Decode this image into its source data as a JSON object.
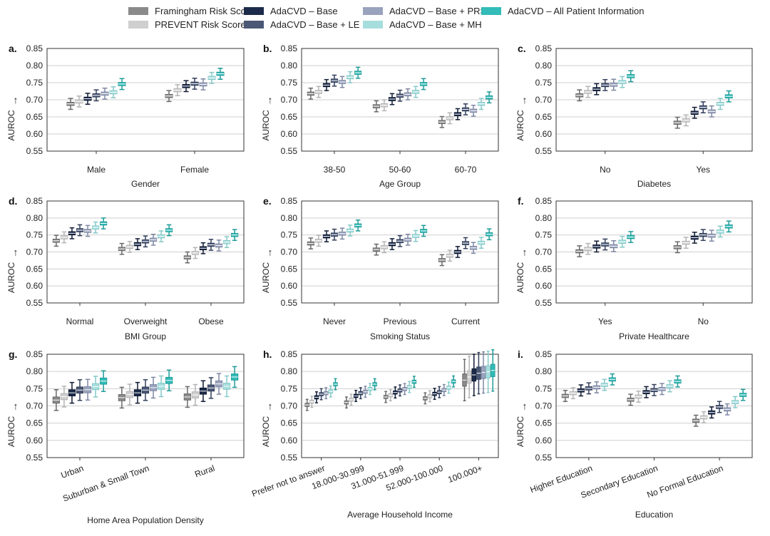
{
  "legend": {
    "items": [
      {
        "label": "Framingham Risk Score",
        "color": "#8a8a8a"
      },
      {
        "label": "PREVENT Risk Score",
        "color": "#cfcfcf"
      },
      {
        "label": "AdaCVD – Base",
        "color": "#1c2b4a"
      },
      {
        "label": "AdaCVD – Base + LE",
        "color": "#4a5775"
      },
      {
        "label": "AdaCVD – Base + PRS",
        "color": "#9aa3bd"
      },
      {
        "label": "AdaCVD – Base + MH",
        "color": "#a6dede"
      },
      {
        "label": "AdaCVD – All Patient Information",
        "color": "#33bcb8"
      }
    ]
  },
  "chart_data": [
    {
      "type": "box",
      "panel": "a.",
      "title": "Gender",
      "ylabel": "↑\nAUROC",
      "ylim": [
        0.55,
        0.85
      ],
      "yticks": [
        "0.55",
        "0.60",
        "0.65",
        "0.70",
        "0.75",
        "0.80",
        "0.85"
      ],
      "categories": [
        "Male",
        "Female"
      ],
      "xtick_rotation": 0,
      "medians": [
        [
          0.688,
          0.695,
          0.703,
          0.713,
          0.718,
          0.722,
          0.746
        ],
        [
          0.711,
          0.728,
          0.74,
          0.747,
          0.745,
          0.764,
          0.776
        ]
      ]
    },
    {
      "type": "box",
      "panel": "b.",
      "title": "Age Group",
      "ylabel": "↑\nAUROC",
      "ylim": [
        0.55,
        0.85
      ],
      "yticks": [
        "0.55",
        "0.60",
        "0.65",
        "0.70",
        "0.75",
        "0.80",
        "0.85"
      ],
      "categories": [
        "38-50",
        "50-60",
        "60-70"
      ],
      "xtick_rotation": 0,
      "medians": [
        [
          0.718,
          0.723,
          0.743,
          0.756,
          0.752,
          0.766,
          0.779
        ],
        [
          0.681,
          0.684,
          0.702,
          0.712,
          0.716,
          0.723,
          0.746
        ],
        [
          0.635,
          0.646,
          0.658,
          0.672,
          0.668,
          0.688,
          0.707
        ]
      ]
    },
    {
      "type": "box",
      "panel": "c.",
      "title": "Diabetes",
      "ylabel": "↑\nAUROC",
      "ylim": [
        0.55,
        0.85
      ],
      "yticks": [
        "0.55",
        "0.60",
        "0.65",
        "0.70",
        "0.75",
        "0.80",
        "0.85"
      ],
      "categories": [
        "No",
        "Yes"
      ],
      "xtick_rotation": 0,
      "medians": [
        [
          0.713,
          0.723,
          0.731,
          0.743,
          0.744,
          0.752,
          0.769
        ],
        [
          0.633,
          0.64,
          0.662,
          0.678,
          0.666,
          0.688,
          0.71
        ]
      ]
    },
    {
      "type": "box",
      "panel": "d.",
      "title": "BMI Group",
      "ylabel": "↑\nAUROC",
      "ylim": [
        0.55,
        0.85
      ],
      "yticks": [
        "0.55",
        "0.60",
        "0.65",
        "0.70",
        "0.75",
        "0.80",
        "0.85"
      ],
      "categories": [
        "Normal",
        "Overweight",
        "Obese"
      ],
      "xtick_rotation": 0,
      "medians": [
        [
          0.733,
          0.743,
          0.755,
          0.764,
          0.762,
          0.772,
          0.784
        ],
        [
          0.709,
          0.715,
          0.723,
          0.731,
          0.736,
          0.746,
          0.764
        ],
        [
          0.684,
          0.697,
          0.711,
          0.721,
          0.719,
          0.729,
          0.75
        ]
      ]
    },
    {
      "type": "box",
      "panel": "e.",
      "title": "Smoking Status",
      "ylabel": "↑\nAUROC",
      "ylim": [
        0.55,
        0.85
      ],
      "yticks": [
        "0.55",
        "0.60",
        "0.65",
        "0.70",
        "0.75",
        "0.80",
        "0.85"
      ],
      "categories": [
        "Never",
        "Previous",
        "Current"
      ],
      "xtick_rotation": 0,
      "medians": [
        [
          0.725,
          0.733,
          0.746,
          0.751,
          0.754,
          0.763,
          0.778
        ],
        [
          0.707,
          0.714,
          0.723,
          0.732,
          0.736,
          0.747,
          0.762
        ],
        [
          0.676,
          0.689,
          0.7,
          0.726,
          0.712,
          0.727,
          0.752
        ]
      ]
    },
    {
      "type": "box",
      "panel": "f.",
      "title": "Private Healthcare",
      "ylabel": "↑\nAUROC",
      "ylim": [
        0.55,
        0.85
      ],
      "yticks": [
        "0.55",
        "0.60",
        "0.65",
        "0.70",
        "0.75",
        "0.80",
        "0.85"
      ],
      "categories": [
        "Yes",
        "No"
      ],
      "xtick_rotation": 0,
      "medians": [
        [
          0.702,
          0.709,
          0.716,
          0.722,
          0.717,
          0.73,
          0.744
        ],
        [
          0.714,
          0.727,
          0.742,
          0.75,
          0.748,
          0.76,
          0.775
        ]
      ]
    },
    {
      "type": "box",
      "panel": "g.",
      "title": "Home Area Population Density",
      "ylabel": "↑\nAUROC",
      "ylim": [
        0.55,
        0.85
      ],
      "yticks": [
        "0.55",
        "0.60",
        "0.65",
        "0.70",
        "0.75",
        "0.80",
        "0.85"
      ],
      "categories": [
        "Urban",
        "Suburban & Small Town",
        "Rural"
      ],
      "xtick_rotation": -20,
      "medians": [
        [
          0.717,
          0.727,
          0.738,
          0.746,
          0.747,
          0.756,
          0.772
        ],
        [
          0.724,
          0.733,
          0.738,
          0.746,
          0.753,
          0.757,
          0.774
        ],
        [
          0.726,
          0.732,
          0.743,
          0.752,
          0.764,
          0.757,
          0.784
        ]
      ]
    },
    {
      "type": "box",
      "panel": "h.",
      "title": "Average Household Income",
      "ylabel": "↑\nAUROC",
      "ylim": [
        0.55,
        0.85
      ],
      "yticks": [
        "0.55",
        "0.60",
        "0.65",
        "0.70",
        "0.75",
        "0.80",
        "0.85"
      ],
      "categories": [
        "Prefer not to answer",
        "18.000-30.999",
        "31.000-51.999",
        "52.000-100.000",
        "100.000+"
      ],
      "xtick_rotation": -20,
      "medians": [
        [
          0.703,
          0.712,
          0.725,
          0.734,
          0.737,
          0.742,
          0.763
        ],
        [
          0.71,
          0.718,
          0.729,
          0.737,
          0.741,
          0.749,
          0.763
        ],
        [
          0.726,
          0.731,
          0.739,
          0.745,
          0.749,
          0.755,
          0.77
        ],
        [
          0.722,
          0.728,
          0.735,
          0.74,
          0.746,
          0.753,
          0.771
        ],
        [
          0.775,
          0.784,
          0.79,
          0.795,
          0.797,
          0.799,
          0.803
        ]
      ]
    },
    {
      "type": "box",
      "panel": "i.",
      "title": "Education",
      "ylabel": "↑\nAUROC",
      "ylim": [
        0.55,
        0.85
      ],
      "yticks": [
        "0.55",
        "0.60",
        "0.65",
        "0.70",
        "0.75",
        "0.80",
        "0.85"
      ],
      "categories": [
        "Higher Education",
        "Secondary Education",
        "No Formal Education"
      ],
      "xtick_rotation": -20,
      "medians": [
        [
          0.729,
          0.737,
          0.745,
          0.751,
          0.754,
          0.761,
          0.777
        ],
        [
          0.718,
          0.727,
          0.74,
          0.746,
          0.749,
          0.757,
          0.771
        ],
        [
          0.657,
          0.667,
          0.681,
          0.697,
          0.69,
          0.711,
          0.732
        ]
      ]
    }
  ]
}
